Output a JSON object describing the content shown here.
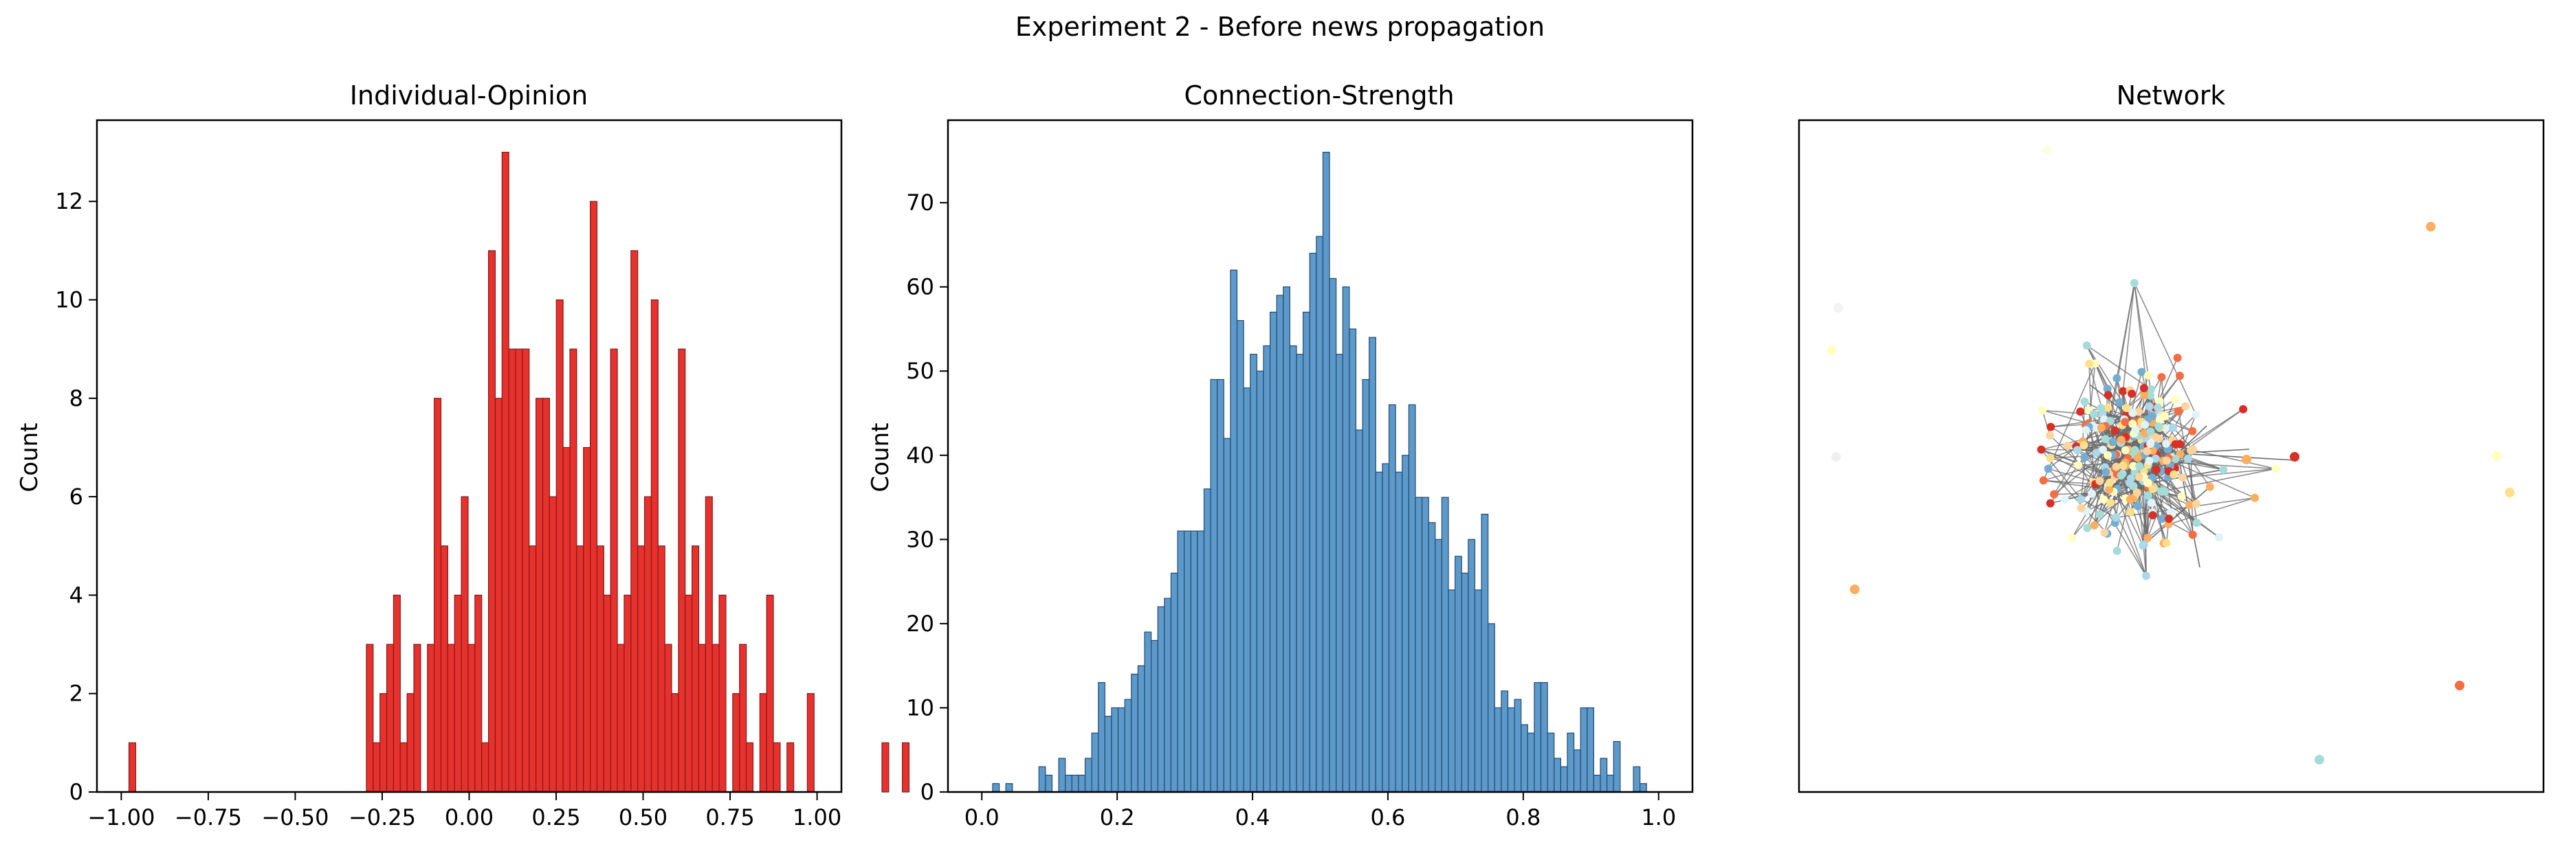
{
  "figure": {
    "suptitle": "Experiment 2 - Before news propagation"
  },
  "chart_data": [
    {
      "type": "bar",
      "title": "Individual-Opinion",
      "xlabel": "",
      "ylabel": "Count",
      "xlim": [
        -1.07,
        1.07
      ],
      "ylim": [
        0,
        13.65
      ],
      "xticks": [
        -1.0,
        -0.75,
        -0.5,
        -0.25,
        0.0,
        0.25,
        0.5,
        0.75,
        1.0
      ],
      "xtick_labels": [
        "−1.00",
        "−0.75",
        "−0.50",
        "−0.25",
        "0.00",
        "0.25",
        "0.50",
        "0.75",
        "1.00"
      ],
      "yticks": [
        0,
        2,
        4,
        6,
        8,
        10,
        12
      ],
      "ytick_labels": [
        "0",
        "2",
        "4",
        "6",
        "8",
        "10",
        "12"
      ],
      "grid": false,
      "color": "#e8312c",
      "edge_color": "#7a1f1d",
      "bin_start": -0.978,
      "bin_width": 0.0195,
      "values": [
        1,
        0,
        0,
        0,
        0,
        0,
        0,
        0,
        0,
        0,
        0,
        0,
        0,
        0,
        0,
        0,
        0,
        0,
        0,
        0,
        0,
        0,
        0,
        0,
        0,
        0,
        0,
        0,
        0,
        0,
        0,
        0,
        0,
        0,
        0,
        3,
        1,
        2,
        3,
        4,
        1,
        2,
        3,
        0,
        3,
        8,
        5,
        3,
        4,
        6,
        3,
        4,
        1,
        11,
        8,
        13,
        9,
        9,
        9,
        5,
        8,
        8,
        6,
        10,
        7,
        9,
        5,
        7,
        12,
        5,
        4,
        9,
        3,
        4,
        11,
        5,
        6,
        10,
        5,
        3,
        2,
        9,
        4,
        5,
        3,
        6,
        3,
        4,
        0,
        2,
        3,
        1,
        0,
        2,
        4,
        1,
        0,
        1,
        0,
        0,
        2,
        0,
        0,
        0,
        0,
        0,
        0,
        0,
        0,
        0,
        0,
        1,
        0,
        0,
        1
      ]
    },
    {
      "type": "bar",
      "title": "Connection-Strength",
      "xlabel": "",
      "ylabel": "Count",
      "xlim": [
        -0.05,
        1.05
      ],
      "ylim": [
        0,
        79.8
      ],
      "xticks": [
        0.0,
        0.2,
        0.4,
        0.6,
        0.8,
        1.0
      ],
      "xtick_labels": [
        "0.0",
        "0.2",
        "0.4",
        "0.6",
        "0.8",
        "1.0"
      ],
      "yticks": [
        0,
        10,
        20,
        30,
        40,
        50,
        60,
        70
      ],
      "ytick_labels": [
        "0",
        "10",
        "20",
        "30",
        "40",
        "50",
        "60",
        "70"
      ],
      "grid": false,
      "color": "#5c9acb",
      "edge_color": "#28496a",
      "bin_start": 0.016,
      "bin_width": 0.00976,
      "values": [
        1,
        0,
        1,
        0,
        0,
        0,
        0,
        3,
        2,
        0,
        4,
        2,
        2,
        2,
        4,
        7,
        13,
        9,
        10,
        10,
        11,
        14,
        15,
        19,
        18,
        22,
        23,
        26,
        31,
        31,
        31,
        31,
        36,
        49,
        49,
        42,
        62,
        56,
        48,
        52,
        50,
        53,
        57,
        59,
        60,
        53,
        52,
        57,
        64,
        66,
        76,
        61,
        52,
        60,
        55,
        43,
        49,
        54,
        38,
        39,
        46,
        38,
        40,
        46,
        35,
        35,
        32,
        30,
        35,
        24,
        28,
        26,
        30,
        24,
        33,
        20,
        10,
        12,
        10,
        11,
        8,
        7,
        13,
        13,
        7,
        4,
        3,
        7,
        5,
        10,
        10,
        2,
        4,
        2,
        6,
        0,
        0,
        3,
        1,
        0
      ]
    },
    {
      "type": "network",
      "title": "Network",
      "axes_ticks": false
    }
  ]
}
